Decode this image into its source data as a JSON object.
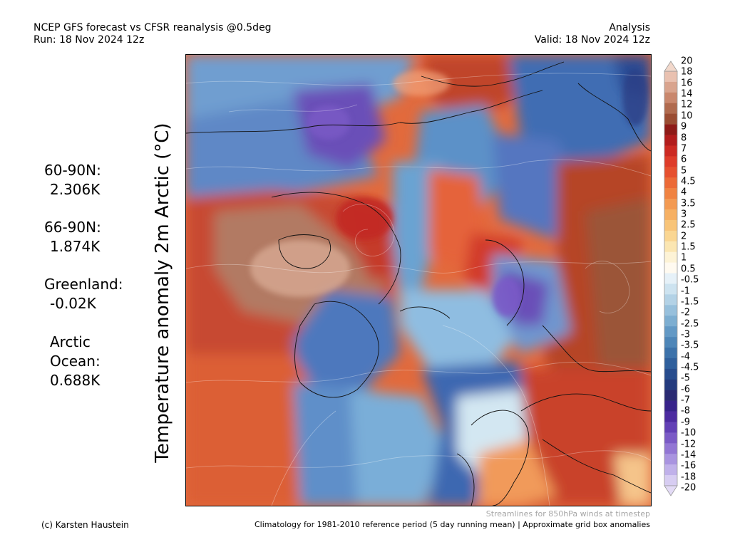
{
  "header": {
    "title": "NCEP GFS forecast vs CFSR reanalysis @0.5deg",
    "run": "Run: 18 Nov 2024 12z",
    "analysis": "Analysis",
    "valid": "Valid: 18 Nov 2024 12z"
  },
  "ylabel": "Temperature anomaly 2m Arctic (°C)",
  "stats": [
    {
      "label": "60-90N:",
      "value": "2.306K"
    },
    {
      "label": "66-90N:",
      "value": "1.874K"
    },
    {
      "label": "Greenland:",
      "value": "-0.02K"
    },
    {
      "label": "Arctic Ocean:",
      "value": "0.688K"
    }
  ],
  "colorbar": {
    "ticks": [
      "20",
      "18",
      "16",
      "14",
      "12",
      "10",
      "9",
      "8",
      "7",
      "6",
      "5",
      "4.5",
      "4",
      "3.5",
      "3",
      "2.5",
      "2",
      "1.5",
      "1",
      "0.5",
      "-0.5",
      "-1",
      "-1.5",
      "-2",
      "-2.5",
      "-3",
      "-3.5",
      "-4",
      "-4.5",
      "-5",
      "-6",
      "-7",
      "-8",
      "-9",
      "-10",
      "-12",
      "-14",
      "-16",
      "-18",
      "-20"
    ],
    "colors": [
      "#e9c1b0",
      "#d9a48e",
      "#c9876d",
      "#b06a4e",
      "#9a4c32",
      "#8e1b18",
      "#b21d1d",
      "#cc2a23",
      "#de3c2a",
      "#e6502f",
      "#ec6a37",
      "#f08342",
      "#f39a52",
      "#f6b063",
      "#f8c478",
      "#fad692",
      "#fbe6b2",
      "#fdf3d6",
      "#fffaf0",
      "#e6f1f8",
      "#cde3f0",
      "#b3d2e6",
      "#97c0dc",
      "#7daed1",
      "#6399c5",
      "#4e86b8",
      "#3c72aa",
      "#2f5f9c",
      "#274c8d",
      "#243b7e",
      "#2a2a72",
      "#37238a",
      "#4c2ba0",
      "#6240b5",
      "#7a5ac6",
      "#9276d4",
      "#a994e0",
      "#c0b1ea",
      "#d7cdf2"
    ]
  },
  "footer": {
    "note": "Streamlines for 850hPa winds at timestep",
    "credit": "(c) Karsten Haustein",
    "climatology": "Climatology for 1981-2010 reference period (5 day running mean) | Approximate grid box anomalies"
  }
}
